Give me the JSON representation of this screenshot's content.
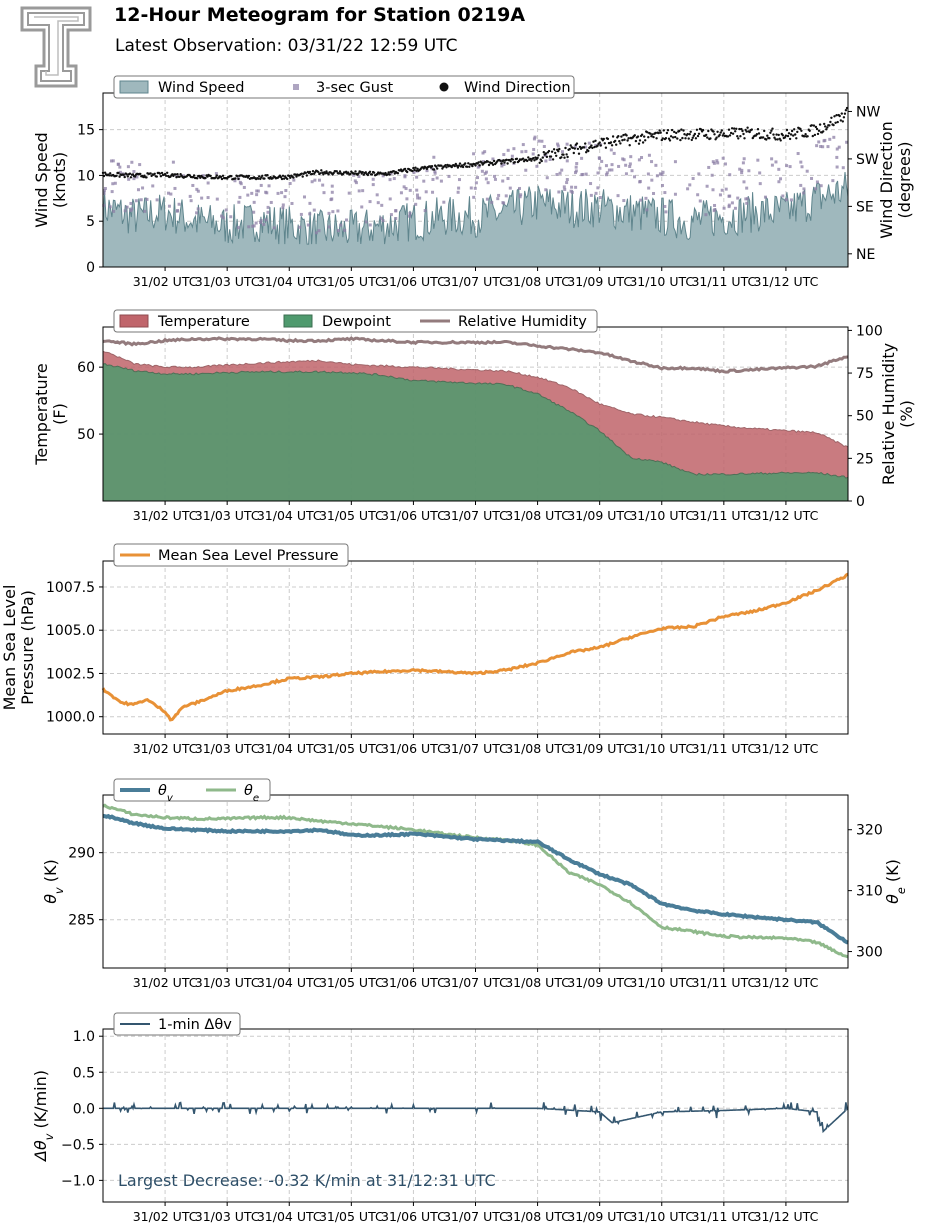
{
  "header": {
    "title": "12-Hour Meteogram for Station 0219A",
    "subtitle": "Latest Observation: 03/31/22 12:59 UTC"
  },
  "colors": {
    "wind_speed": "#9fb8bd",
    "wind_speed_line": "#5f858d",
    "gust": "#8c7fa6",
    "direction": "#111111",
    "temperature": "#c0656b",
    "dewpoint": "#4f9a6e",
    "rh": "#937b7d",
    "pressure": "#e89136",
    "theta_v": "#4a7d98",
    "theta_e": "#8fb98b",
    "dtheta": "#34566f",
    "annotation": "#2e4f68",
    "grid": "#cccccc"
  },
  "chart_data": [
    {
      "type": "area",
      "id": "wind",
      "xlabels": [
        "31/02 UTC",
        "31/03 UTC",
        "31/04 UTC",
        "31/05 UTC",
        "31/06 UTC",
        "31/07 UTC",
        "31/08 UTC",
        "31/09 UTC",
        "31/10 UTC",
        "31/11 UTC",
        "31/12 UTC"
      ],
      "x_range_hours": [
        1.0,
        13.0
      ],
      "ylabel": "Wind Speed\n(knots)",
      "ylim": [
        0,
        19
      ],
      "yticks": [
        "0",
        "5",
        "10",
        "15"
      ],
      "y2label": "Wind Direction\n(degrees)",
      "y2lim": [
        20,
        350
      ],
      "y2ticks": [
        {
          "value": 45,
          "label": "NE"
        },
        {
          "value": 135,
          "label": "SE"
        },
        {
          "value": 225,
          "label": "SW"
        },
        {
          "value": 315,
          "label": "NW"
        }
      ],
      "legend": [
        "Wind Speed",
        "3-sec Gust",
        "Wind Direction"
      ],
      "legend_position": "top-left",
      "series": [
        {
          "name": "Wind Speed",
          "unit": "knots",
          "x": [
            1.0,
            1.5,
            2.0,
            2.5,
            3.0,
            3.5,
            4.0,
            4.5,
            5.0,
            5.5,
            6.0,
            6.5,
            7.0,
            7.5,
            8.0,
            8.5,
            9.0,
            9.5,
            10.0,
            10.5,
            11.0,
            11.5,
            12.0,
            12.5,
            13.0
          ],
          "values": [
            6.5,
            5.5,
            6.0,
            5.0,
            4.5,
            5.0,
            4.5,
            4.0,
            4.0,
            4.5,
            5.0,
            5.5,
            5.5,
            6.0,
            7.0,
            6.5,
            6.5,
            6.0,
            5.5,
            5.0,
            5.5,
            6.0,
            6.0,
            7.5,
            8.5
          ]
        },
        {
          "name": "3-sec Gust",
          "unit": "knots",
          "x": [
            1.0,
            1.5,
            2.0,
            2.5,
            3.0,
            3.5,
            4.0,
            4.5,
            5.0,
            5.5,
            6.0,
            6.5,
            7.0,
            7.5,
            8.0,
            8.5,
            9.0,
            9.5,
            10.0,
            10.5,
            11.0,
            11.5,
            12.0,
            12.5,
            13.0
          ],
          "values": [
            9.0,
            8.5,
            9.5,
            8.0,
            7.0,
            7.5,
            7.0,
            6.5,
            7.0,
            7.5,
            8.5,
            9.5,
            9.5,
            10.0,
            11.5,
            11.0,
            10.5,
            9.5,
            9.0,
            8.5,
            9.0,
            9.5,
            10.0,
            11.0,
            13.0
          ]
        },
        {
          "name": "Wind Direction",
          "unit": "degrees",
          "x": [
            1.0,
            1.5,
            2.0,
            2.5,
            3.0,
            3.5,
            4.0,
            4.5,
            5.0,
            5.5,
            6.0,
            6.5,
            7.0,
            7.5,
            8.0,
            8.5,
            9.0,
            9.5,
            10.0,
            10.5,
            11.0,
            11.5,
            12.0,
            12.5,
            13.0
          ],
          "values": [
            196,
            193,
            195,
            192,
            190,
            190,
            191,
            200,
            198,
            196,
            205,
            210,
            215,
            220,
            226,
            240,
            255,
            262,
            270,
            272,
            272,
            274,
            270,
            280,
            312
          ]
        }
      ]
    },
    {
      "type": "area",
      "id": "temp",
      "xlabels": [
        "31/02 UTC",
        "31/03 UTC",
        "31/04 UTC",
        "31/05 UTC",
        "31/06 UTC",
        "31/07 UTC",
        "31/08 UTC",
        "31/09 UTC",
        "31/10 UTC",
        "31/11 UTC",
        "31/12 UTC"
      ],
      "x_range_hours": [
        1.0,
        13.0
      ],
      "ylabel": "Temperature\n(F)",
      "ylim": [
        40,
        66
      ],
      "yticks": [
        "50",
        "60"
      ],
      "y2label": "Relative Humidity\n(%)",
      "y2lim": [
        0,
        102
      ],
      "y2ticks": [
        "0",
        "25",
        "50",
        "75",
        "100"
      ],
      "legend": [
        "Temperature",
        "Dewpoint",
        "Relative Humidity"
      ],
      "legend_position": "top-left",
      "series": [
        {
          "name": "Temperature",
          "unit": "F",
          "x": [
            1.0,
            1.5,
            2.0,
            2.5,
            3.0,
            3.5,
            4.0,
            4.5,
            5.0,
            5.5,
            6.0,
            6.5,
            7.0,
            7.5,
            8.0,
            8.5,
            9.0,
            9.5,
            10.0,
            10.5,
            11.0,
            11.5,
            12.0,
            12.5,
            13.0
          ],
          "values": [
            62.5,
            60.5,
            60.0,
            60.0,
            60.3,
            60.6,
            60.8,
            61.0,
            60.4,
            60.2,
            60.0,
            59.8,
            59.6,
            59.4,
            58.5,
            57.0,
            54.5,
            53.0,
            52.5,
            51.8,
            51.2,
            50.8,
            50.5,
            50.2,
            48.0
          ]
        },
        {
          "name": "Dewpoint",
          "unit": "F",
          "x": [
            1.0,
            1.5,
            2.0,
            2.5,
            3.0,
            3.5,
            4.0,
            4.5,
            5.0,
            5.5,
            6.0,
            6.5,
            7.0,
            7.5,
            8.0,
            8.5,
            9.0,
            9.5,
            10.0,
            10.5,
            11.0,
            11.5,
            12.0,
            12.5,
            13.0
          ],
          "values": [
            60.5,
            59.5,
            59.0,
            59.0,
            59.2,
            59.3,
            59.3,
            59.3,
            59.2,
            58.8,
            58.0,
            57.8,
            57.6,
            57.4,
            56.0,
            53.5,
            50.5,
            46.5,
            45.8,
            44.0,
            44.0,
            44.1,
            44.2,
            44.2,
            43.5
          ]
        },
        {
          "name": "Relative Humidity",
          "unit": "%",
          "x": [
            1.0,
            1.5,
            2.0,
            2.5,
            3.0,
            3.5,
            4.0,
            4.5,
            5.0,
            5.5,
            6.0,
            6.5,
            7.0,
            7.5,
            8.0,
            8.5,
            9.0,
            9.5,
            10.0,
            10.5,
            11.0,
            11.5,
            12.0,
            12.5,
            13.0
          ],
          "values": [
            94,
            92,
            94,
            95,
            95,
            95,
            94,
            94,
            95,
            94,
            93,
            93,
            93,
            93,
            91,
            89,
            87,
            82,
            78,
            78,
            76,
            77,
            78,
            79,
            85
          ]
        }
      ]
    },
    {
      "type": "line",
      "id": "pressure",
      "xlabels": [
        "31/02 UTC",
        "31/03 UTC",
        "31/04 UTC",
        "31/05 UTC",
        "31/06 UTC",
        "31/07 UTC",
        "31/08 UTC",
        "31/09 UTC",
        "31/10 UTC",
        "31/11 UTC",
        "31/12 UTC"
      ],
      "x_range_hours": [
        1.0,
        13.0
      ],
      "ylabel": "Mean Sea Level\nPressure (hPa)",
      "ylim": [
        999.0,
        1009.0
      ],
      "yticks": [
        "1000.0",
        "1002.5",
        "1005.0",
        "1007.5"
      ],
      "legend": [
        "Mean Sea Level Pressure"
      ],
      "legend_position": "top-left",
      "series": [
        {
          "name": "Mean Sea Level Pressure",
          "unit": "hPa",
          "x": [
            1.0,
            1.3,
            1.5,
            1.7,
            2.0,
            2.1,
            2.3,
            2.5,
            3.0,
            3.5,
            4.0,
            4.5,
            5.0,
            5.5,
            6.0,
            6.5,
            7.0,
            7.5,
            8.0,
            8.5,
            9.0,
            9.5,
            10.0,
            10.5,
            11.0,
            11.5,
            12.0,
            12.5,
            13.0
          ],
          "values": [
            1001.6,
            1000.8,
            1000.7,
            1001.0,
            1000.3,
            999.8,
            1000.6,
            1000.8,
            1001.5,
            1001.8,
            1002.2,
            1002.3,
            1002.5,
            1002.6,
            1002.7,
            1002.6,
            1002.5,
            1002.7,
            1003.1,
            1003.7,
            1004.0,
            1004.6,
            1005.1,
            1005.2,
            1005.8,
            1006.1,
            1006.6,
            1007.3,
            1008.2
          ]
        }
      ]
    },
    {
      "type": "line",
      "id": "theta",
      "xlabels": [
        "31/02 UTC",
        "31/03 UTC",
        "31/04 UTC",
        "31/05 UTC",
        "31/06 UTC",
        "31/07 UTC",
        "31/08 UTC",
        "31/09 UTC",
        "31/10 UTC",
        "31/11 UTC",
        "31/12 UTC"
      ],
      "x_range_hours": [
        1.0,
        13.0
      ],
      "ylabel": "θv (K)",
      "ylim": [
        281.4,
        294.3
      ],
      "yticks": [
        "285",
        "290"
      ],
      "y2label": "θe (K)",
      "y2lim": [
        297.3,
        325.7
      ],
      "y2ticks": [
        "300",
        "310",
        "320"
      ],
      "legend": [
        "θv",
        "θe"
      ],
      "legend_position": "top-left",
      "series": [
        {
          "name": "θv",
          "unit": "K",
          "x": [
            1.0,
            1.5,
            2.0,
            2.5,
            3.0,
            3.5,
            4.0,
            4.5,
            5.0,
            5.5,
            6.0,
            6.5,
            7.0,
            7.5,
            8.0,
            8.5,
            9.0,
            9.5,
            10.0,
            10.5,
            11.0,
            11.5,
            12.0,
            12.5,
            13.0
          ],
          "values": [
            292.8,
            292.2,
            291.8,
            291.7,
            291.6,
            291.6,
            291.6,
            291.7,
            291.3,
            291.3,
            291.4,
            291.2,
            291.0,
            290.9,
            290.8,
            289.5,
            288.4,
            287.6,
            286.2,
            285.7,
            285.4,
            285.2,
            285.0,
            284.8,
            283.3
          ]
        },
        {
          "name": "θe",
          "unit": "K",
          "x": [
            1.0,
            1.5,
            2.0,
            2.5,
            3.0,
            3.5,
            4.0,
            4.5,
            5.0,
            5.5,
            6.0,
            6.5,
            7.0,
            7.5,
            8.0,
            8.5,
            9.0,
            9.5,
            10.0,
            10.5,
            11.0,
            11.5,
            12.0,
            12.5,
            13.0
          ],
          "values": [
            324.0,
            322.5,
            322.0,
            321.8,
            321.8,
            322.0,
            322.0,
            321.4,
            321.0,
            320.5,
            320.0,
            319.3,
            318.7,
            318.3,
            317.5,
            313.0,
            311.0,
            308.0,
            304.0,
            303.3,
            302.5,
            302.3,
            302.2,
            301.5,
            299.0
          ]
        }
      ]
    },
    {
      "type": "line",
      "id": "dtheta",
      "xlabels": [
        "31/02 UTC",
        "31/03 UTC",
        "31/04 UTC",
        "31/05 UTC",
        "31/06 UTC",
        "31/07 UTC",
        "31/08 UTC",
        "31/09 UTC",
        "31/10 UTC",
        "31/11 UTC",
        "31/12 UTC"
      ],
      "x_range_hours": [
        1.0,
        13.0
      ],
      "ylabel": "Δθv (K/min)",
      "ylim": [
        -1.3,
        1.1
      ],
      "yticks": [
        "−1.0",
        "−0.5",
        "0.0",
        "0.5",
        "1.0"
      ],
      "legend": [
        "1-min Δθv"
      ],
      "legend_position": "top-left",
      "annotation": "Largest Decrease: -0.32 K/min at 31/12:31 UTC",
      "series": [
        {
          "name": "1-min Δθv",
          "unit": "K/min",
          "x": [
            1.0,
            2.0,
            3.0,
            4.0,
            5.0,
            6.0,
            7.0,
            7.5,
            8.0,
            9.0,
            9.2,
            10.0,
            11.0,
            12.0,
            12.5,
            12.6,
            13.0
          ],
          "values": [
            0.0,
            0.0,
            0.0,
            0.0,
            0.0,
            0.0,
            0.0,
            0.0,
            0.0,
            -0.05,
            -0.2,
            -0.05,
            -0.03,
            0.0,
            -0.05,
            -0.32,
            0.0
          ]
        }
      ]
    }
  ]
}
